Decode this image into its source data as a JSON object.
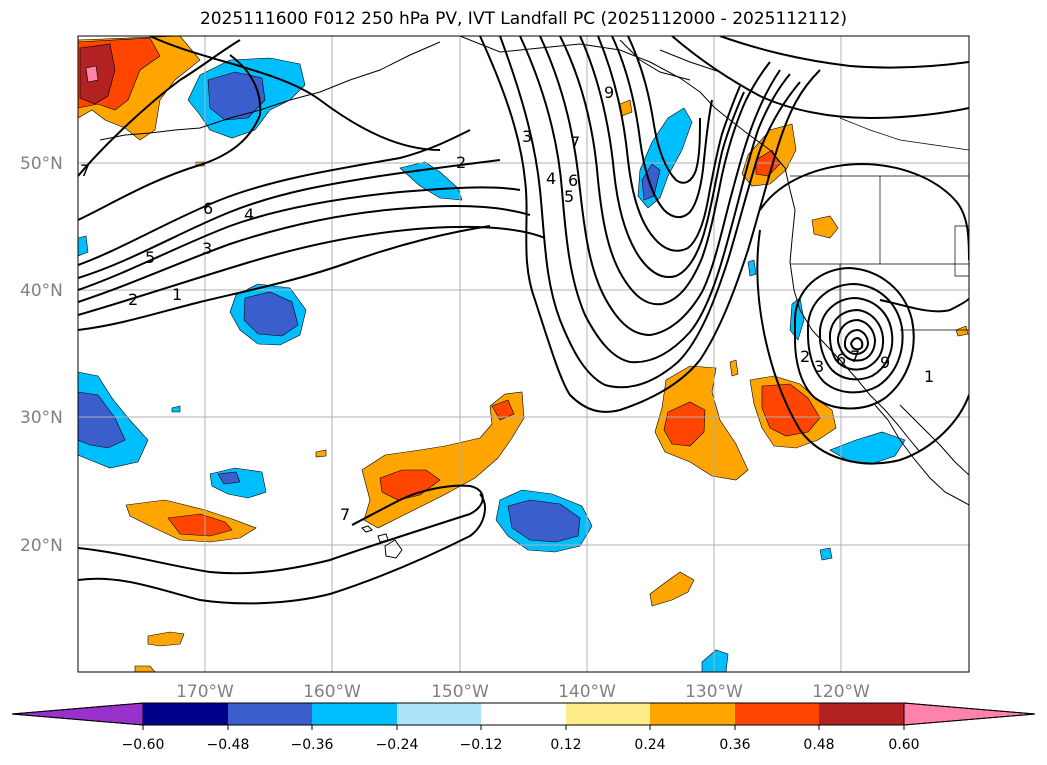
{
  "title": "2025111600 F012 250 hPa PV, IVT Landfall PC (2025112000 - 2025112112)",
  "map": {
    "lat_labels": [
      "50°N",
      "40°N",
      "30°N",
      "20°N"
    ],
    "lon_labels": [
      "170°W",
      "160°W",
      "150°W",
      "140°W",
      "130°W",
      "120°W"
    ]
  },
  "contour_labels": [
    "1",
    "2",
    "3",
    "4",
    "5",
    "6",
    "7",
    "2",
    "7",
    "3",
    "4",
    "5",
    "6",
    "9",
    "7",
    "2",
    "3",
    "9",
    "1",
    "6",
    "7"
  ],
  "colorbar": {
    "ticks": [
      "−0.60",
      "−0.48",
      "−0.36",
      "−0.24",
      "−0.12",
      "0.12",
      "0.24",
      "0.36",
      "0.48",
      "0.60"
    ],
    "colors": {
      "under": "#9932CC",
      "c1": "#00008B",
      "c2": "#3A5FCD",
      "c3": "#00BFFF",
      "c4": "#ADE3FA",
      "c5": "#FFFFFF",
      "c6": "#FFEC8B",
      "c7": "#FFA500",
      "c8": "#FF4500",
      "c9": "#B22222",
      "over": "#FF82AB"
    }
  }
}
